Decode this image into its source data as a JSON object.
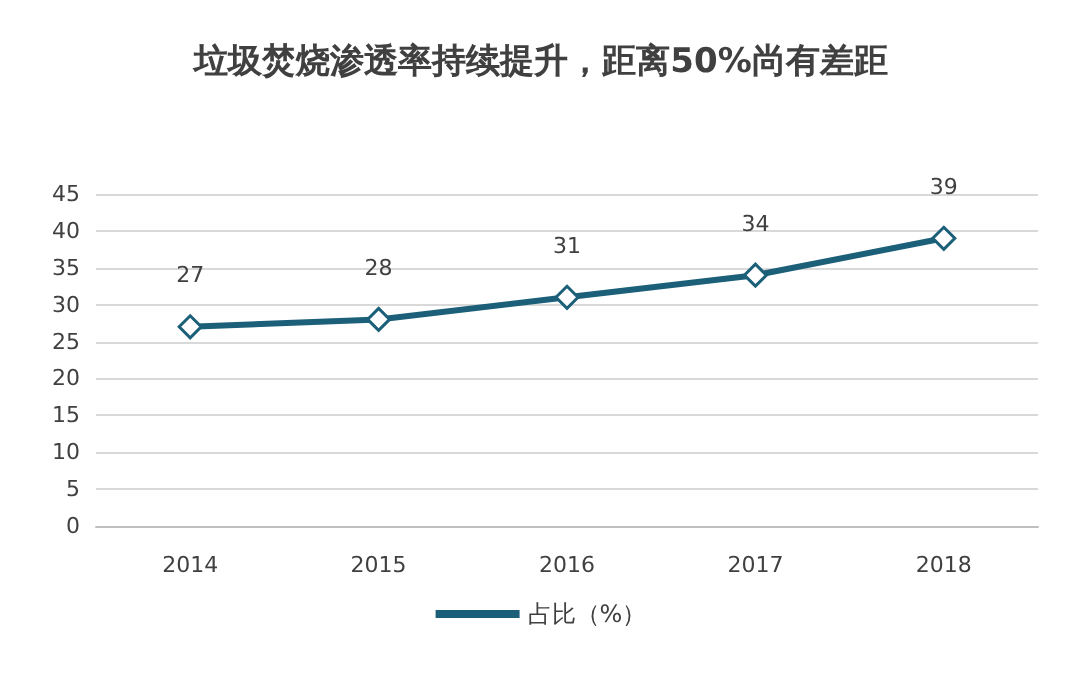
{
  "chart_data": {
    "type": "line",
    "title": "垃圾焚烧渗透率持续提升，距离50%尚有差距",
    "categories": [
      "2014",
      "2015",
      "2016",
      "2017",
      "2018"
    ],
    "series": [
      {
        "name": "占比（%）",
        "color": "#1c5f78",
        "values": [
          27,
          28,
          31,
          34,
          39
        ]
      }
    ],
    "ylim": [
      0,
      45
    ],
    "yticks": [
      0,
      5,
      10,
      15,
      20,
      25,
      30,
      35,
      40,
      45
    ],
    "grid": "y",
    "legend": "bottom",
    "marker": "diamond",
    "data_labels": true
  }
}
